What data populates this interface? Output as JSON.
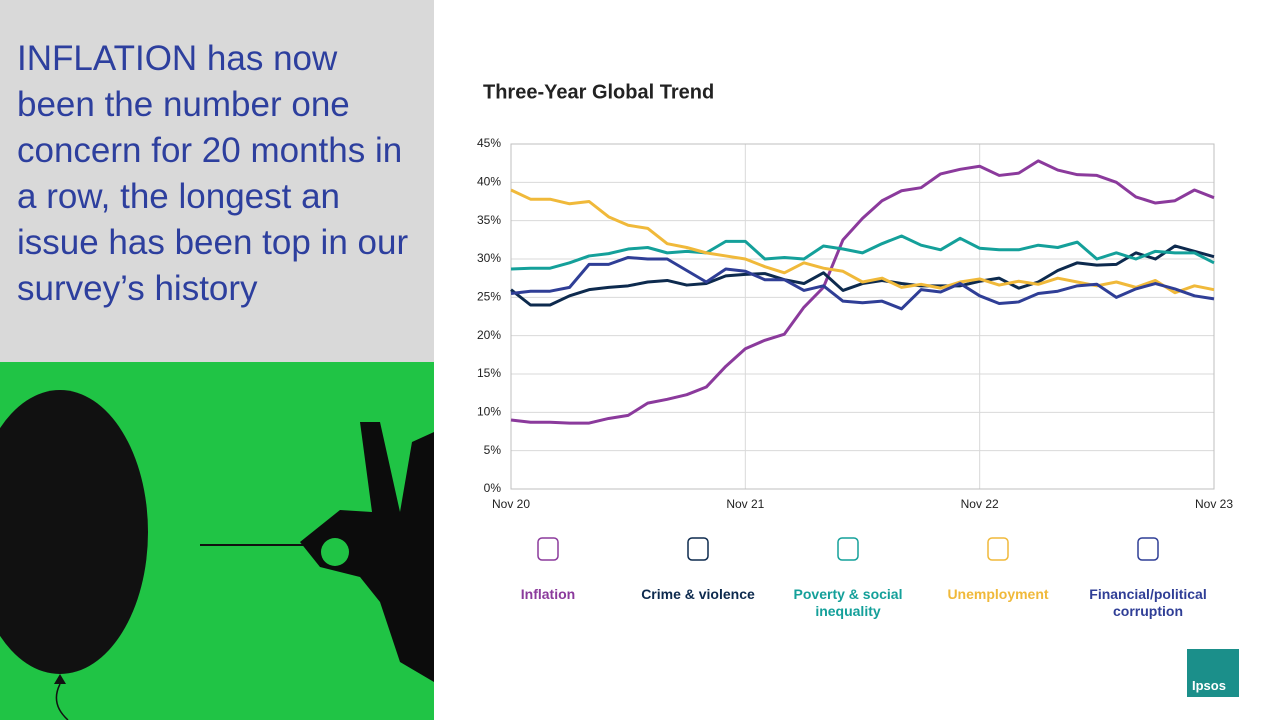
{
  "headline": "INFLATION has now been the number one concern for 20 months in a row, the longest an issue has been top in our survey’s history",
  "logo": "Ipsos",
  "chart_data": {
    "type": "line",
    "title": "Three-Year Global Trend",
    "categories": [
      "Nov 20",
      null,
      null,
      null,
      null,
      null,
      null,
      null,
      null,
      null,
      null,
      null,
      "Nov 21",
      null,
      null,
      null,
      null,
      null,
      null,
      null,
      null,
      null,
      null,
      null,
      "Nov 22",
      null,
      null,
      null,
      null,
      null,
      null,
      null,
      null,
      null,
      null,
      null,
      "Nov 23"
    ],
    "ylim": [
      0,
      45
    ],
    "yticks": [
      {
        "value": 0,
        "label": "0%"
      },
      {
        "value": 5,
        "label": "5%"
      },
      {
        "value": 10,
        "label": "10%"
      },
      {
        "value": 15,
        "label": "15%"
      },
      {
        "value": 20,
        "label": "20%"
      },
      {
        "value": 25,
        "label": "25%"
      },
      {
        "value": 30,
        "label": "30%"
      },
      {
        "value": 35,
        "label": "35%"
      },
      {
        "value": 40,
        "label": "40%"
      },
      {
        "value": 45,
        "label": "45%"
      }
    ],
    "grid": true,
    "series": [
      {
        "name": "Inflation",
        "color": "#8b3a9c",
        "values": [
          9,
          8.7,
          8.7,
          8.6,
          8.6,
          9.2,
          9.6,
          11.2,
          11.7,
          12.3,
          13.3,
          16,
          18.3,
          19.4,
          20.2,
          23.7,
          26.3,
          32.5,
          35.3,
          37.6,
          38.9,
          39.3,
          41.1,
          41.7,
          42.1,
          40.9,
          41.2,
          42.8,
          41.6,
          41,
          40.9,
          40,
          38.1,
          37.3,
          37.6,
          39,
          38
        ]
      },
      {
        "name": "Crime & violence",
        "color": "#0d2a4e",
        "values": [
          26,
          24,
          24,
          25.2,
          26,
          26.3,
          26.5,
          27,
          27.2,
          26.6,
          26.8,
          27.8,
          28,
          28.1,
          27.3,
          26.8,
          28.2,
          25.9,
          26.8,
          27.2,
          26.8,
          26.5,
          26.5,
          26.5,
          27.1,
          27.5,
          26.2,
          27,
          28.5,
          29.5,
          29.2,
          29.3,
          30.8,
          30,
          31.7,
          31,
          30.3
        ]
      },
      {
        "name": "Poverty & social inequality",
        "color": "#14a09a",
        "values": [
          28.7,
          28.8,
          28.8,
          29.5,
          30.4,
          30.7,
          31.3,
          31.5,
          30.8,
          31,
          30.8,
          32.3,
          32.3,
          30,
          30.2,
          30,
          31.7,
          31.3,
          30.8,
          32,
          33,
          31.8,
          31.2,
          32.7,
          31.4,
          31.2,
          31.2,
          31.8,
          31.5,
          32.2,
          30,
          30.8,
          30,
          31,
          30.8,
          30.8,
          29.5
        ]
      },
      {
        "name": "Unemployment",
        "color": "#f0b93a",
        "values": [
          39,
          37.8,
          37.8,
          37.2,
          37.5,
          35.5,
          34.4,
          34,
          32,
          31.5,
          30.8,
          30.4,
          30,
          29,
          28.2,
          29.5,
          28.8,
          28.4,
          27,
          27.5,
          26.3,
          26.7,
          26.2,
          27,
          27.4,
          26.6,
          27.1,
          26.7,
          27.5,
          27,
          26.5,
          27,
          26.3,
          27.2,
          25.6,
          26.5,
          26
        ]
      },
      {
        "name": "Financial/political corruption",
        "color": "#2f3e96",
        "values": [
          25.5,
          25.8,
          25.8,
          26.3,
          29.3,
          29.3,
          30.2,
          30,
          30,
          28.5,
          27,
          28.7,
          28.4,
          27.3,
          27.3,
          25.9,
          26.5,
          24.5,
          24.3,
          24.5,
          23.5,
          26,
          25.7,
          26.8,
          25.2,
          24.2,
          24.4,
          25.5,
          25.8,
          26.5,
          26.7,
          25,
          26.1,
          26.8,
          26.1,
          25.2,
          24.8
        ]
      }
    ]
  }
}
